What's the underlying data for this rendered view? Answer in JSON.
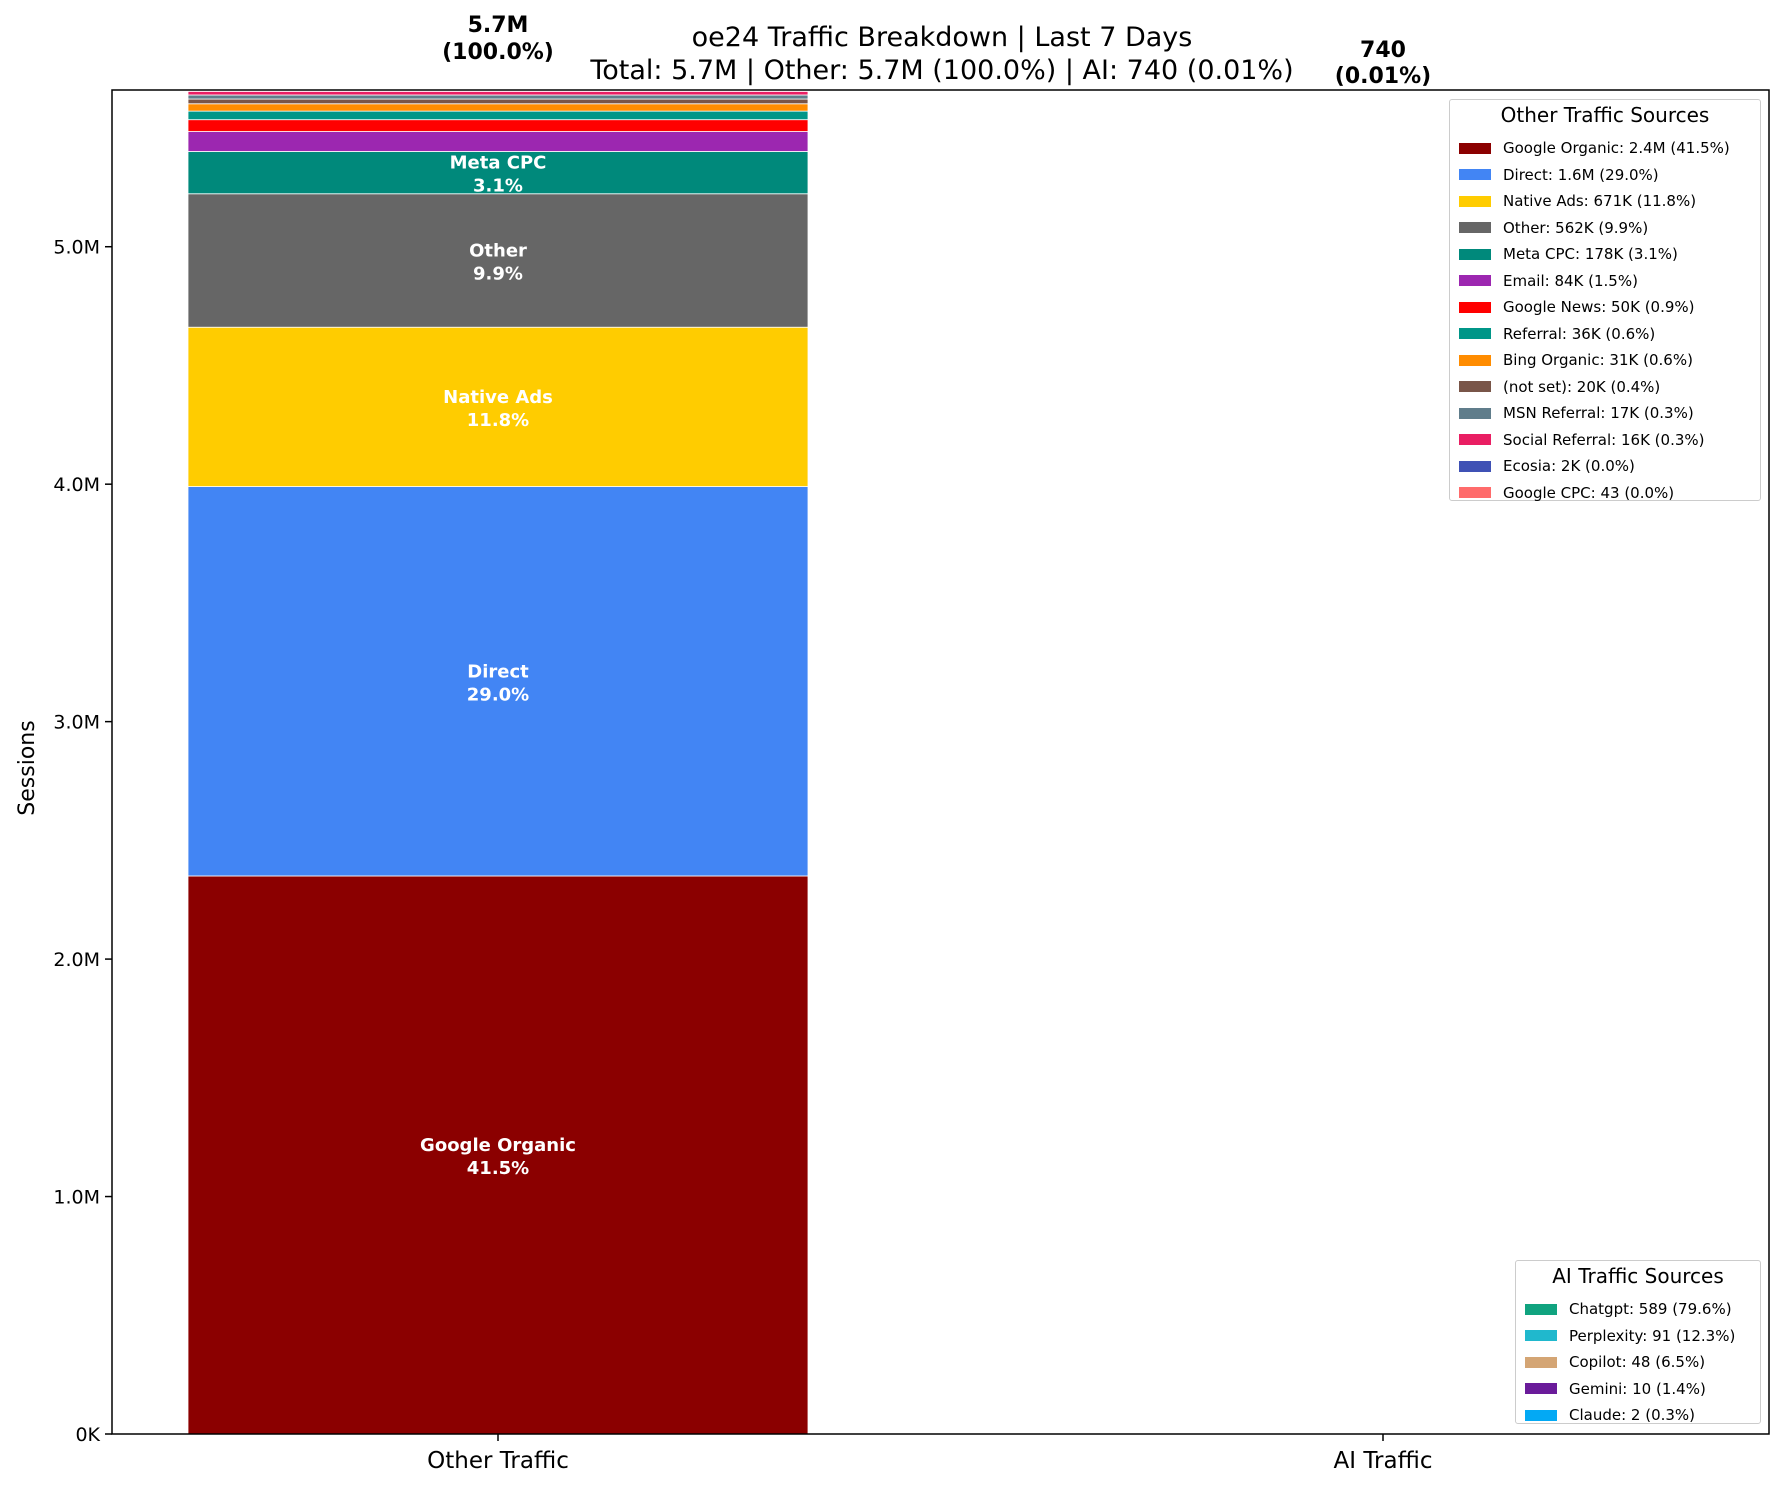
{
  "chart_data": {
    "type": "bar",
    "stacked": true,
    "title": "oe24 Traffic Breakdown | Last 7 Days",
    "subtitle": "Total: 5.7M | Other: 5.7M (100.0%) | AI: 740 (0.01%)",
    "xlabel": "",
    "ylabel": "Sessions",
    "ylim": [
      0,
      5660000
    ],
    "yticks": [
      0,
      1000000,
      2000000,
      3000000,
      4000000,
      5000000
    ],
    "ytick_labels": [
      "0K",
      "1.0M",
      "2.0M",
      "3.0M",
      "4.0M",
      "5.0M"
    ],
    "categories": [
      "Other Traffic",
      "AI Traffic"
    ],
    "bar_totals": [
      {
        "value": "5.7M",
        "pct": "(100.0%)"
      },
      {
        "value": "740",
        "pct": "(0.01%)"
      }
    ],
    "series": [
      {
        "name": "Google Organic",
        "color": "#8B0000",
        "values": [
          2350000,
          0
        ],
        "label": "Google Organic",
        "pct": "41.5%"
      },
      {
        "name": "Direct",
        "color": "#4285F4",
        "values": [
          1640000,
          0
        ],
        "label": "Direct",
        "pct": "29.0%"
      },
      {
        "name": "Native Ads",
        "color": "#FFCC00",
        "values": [
          671000,
          0
        ],
        "label": "Native Ads",
        "pct": "11.8%"
      },
      {
        "name": "Other",
        "color": "#666666",
        "values": [
          562000,
          0
        ],
        "label": "Other",
        "pct": "9.9%"
      },
      {
        "name": "Meta CPC",
        "color": "#00897B",
        "values": [
          178000,
          0
        ],
        "label": "Meta CPC",
        "pct": "3.1%"
      },
      {
        "name": "Email",
        "color": "#9C27B0",
        "values": [
          84000,
          0
        ]
      },
      {
        "name": "Google News",
        "color": "#FF0000",
        "values": [
          50000,
          0
        ]
      },
      {
        "name": "Referral",
        "color": "#009688",
        "values": [
          36000,
          0
        ]
      },
      {
        "name": "Bing Organic",
        "color": "#FF8C00",
        "values": [
          31000,
          0
        ]
      },
      {
        "name": "(not set)",
        "color": "#795548",
        "values": [
          20000,
          0
        ]
      },
      {
        "name": "MSN Referral",
        "color": "#607D8B",
        "values": [
          17000,
          0
        ]
      },
      {
        "name": "Social Referral",
        "color": "#E91E63",
        "values": [
          16000,
          0
        ]
      },
      {
        "name": "Ecosia",
        "color": "#3F51B5",
        "values": [
          2000,
          0
        ]
      },
      {
        "name": "Google CPC",
        "color": "#FF6B6B",
        "values": [
          43,
          0
        ]
      },
      {
        "name": "Chatgpt",
        "color": "#10A37F",
        "values": [
          0,
          589
        ]
      },
      {
        "name": "Perplexity",
        "color": "#20B8CD",
        "values": [
          0,
          91
        ]
      },
      {
        "name": "Copilot",
        "color": "#D4A574",
        "values": [
          0,
          48
        ]
      },
      {
        "name": "Gemini",
        "color": "#6A1B9A",
        "values": [
          0,
          10
        ]
      },
      {
        "name": "Claude",
        "color": "#03A9F4",
        "values": [
          0,
          2
        ]
      }
    ]
  },
  "legends": {
    "other": {
      "title": "Other Traffic Sources",
      "items": [
        {
          "text": "Google Organic: 2.4M (41.5%)",
          "color": "#8B0000"
        },
        {
          "text": "Direct: 1.6M (29.0%)",
          "color": "#4285F4"
        },
        {
          "text": "Native Ads: 671K (11.8%)",
          "color": "#FFCC00"
        },
        {
          "text": "Other: 562K (9.9%)",
          "color": "#666666"
        },
        {
          "text": "Meta CPC: 178K (3.1%)",
          "color": "#00897B"
        },
        {
          "text": "Email: 84K (1.5%)",
          "color": "#9C27B0"
        },
        {
          "text": "Google News: 50K (0.9%)",
          "color": "#FF0000"
        },
        {
          "text": "Referral: 36K (0.6%)",
          "color": "#009688"
        },
        {
          "text": "Bing Organic: 31K (0.6%)",
          "color": "#FF8C00"
        },
        {
          "text": "(not set): 20K (0.4%)",
          "color": "#795548"
        },
        {
          "text": "MSN Referral: 17K (0.3%)",
          "color": "#607D8B"
        },
        {
          "text": "Social Referral: 16K (0.3%)",
          "color": "#E91E63"
        },
        {
          "text": "Ecosia: 2K (0.0%)",
          "color": "#3F51B5"
        },
        {
          "text": "Google CPC: 43 (0.0%)",
          "color": "#FF6B6B"
        }
      ]
    },
    "ai": {
      "title": "AI Traffic Sources",
      "items": [
        {
          "text": "Chatgpt: 589 (79.6%)",
          "color": "#10A37F"
        },
        {
          "text": "Perplexity: 91 (12.3%)",
          "color": "#20B8CD"
        },
        {
          "text": "Copilot: 48 (6.5%)",
          "color": "#D4A574"
        },
        {
          "text": "Gemini: 10 (1.4%)",
          "color": "#6A1B9A"
        },
        {
          "text": "Claude: 2 (0.3%)",
          "color": "#03A9F4"
        }
      ]
    }
  }
}
